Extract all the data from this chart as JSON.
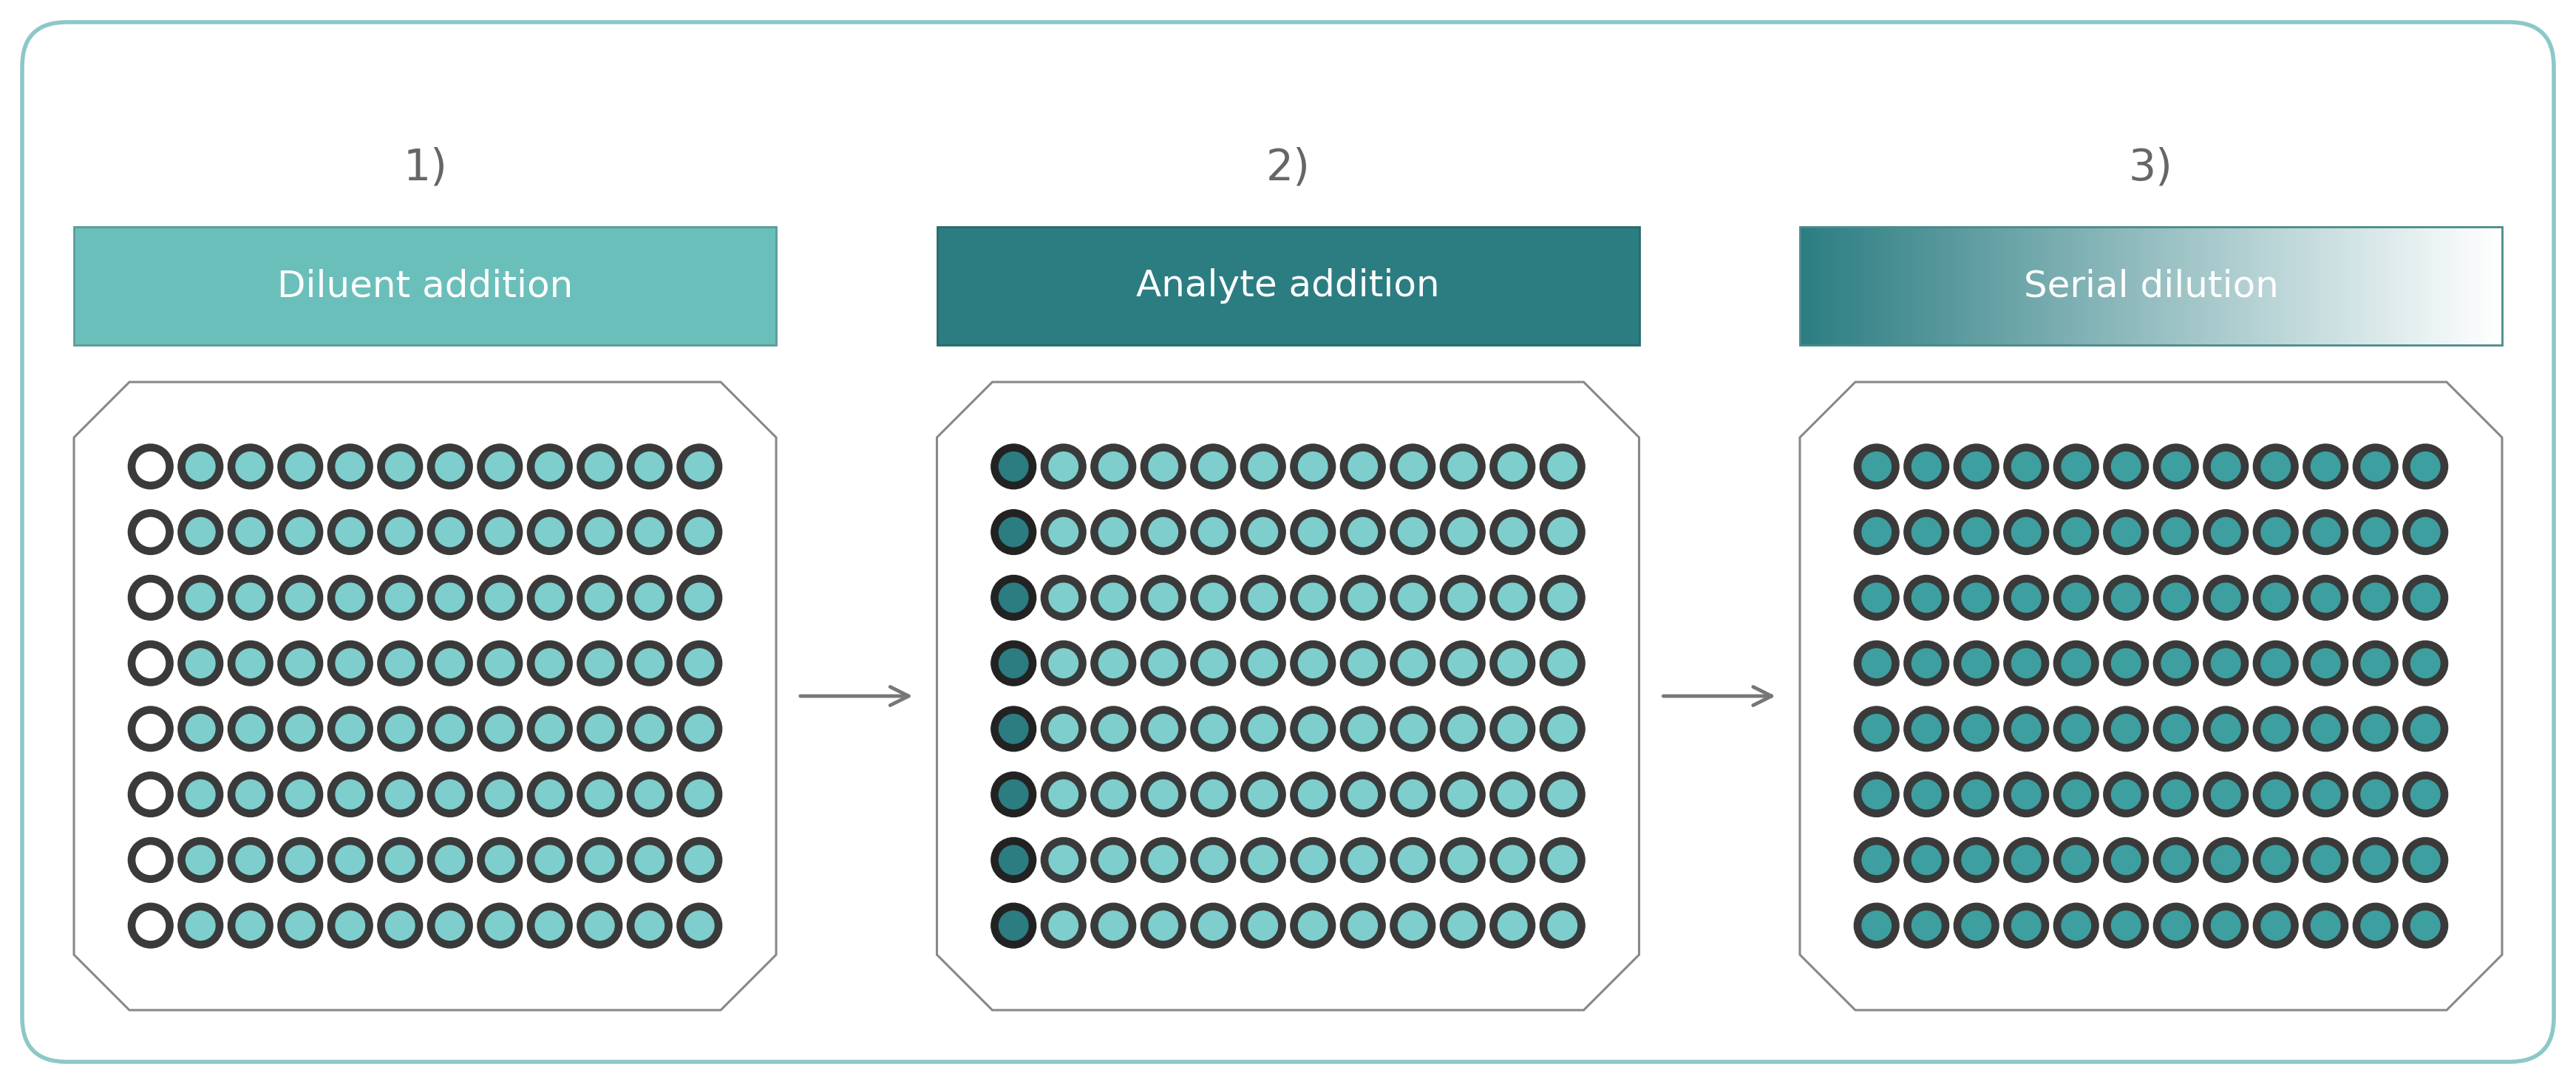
{
  "steps": [
    "1)",
    "2)",
    "3)"
  ],
  "step_labels": [
    "Diluent addition",
    "Analyte addition",
    "Serial dilution"
  ],
  "step_label_color1": "#6bbfbb",
  "step_label_color2": "#2b7d82",
  "bg_color": "#ffffff",
  "outer_border_color": "#8cc8c8",
  "plate_border_color": "#888888",
  "well_ring_color": "#444444",
  "well_ring_color_dark": "#333333",
  "well_teal_light": "#7ecece",
  "well_teal_dark": "#2b7d82",
  "well_white": "#ffffff",
  "arrow_color": "#777777",
  "step_number_color": "#666666",
  "label_text_color": "#ffffff"
}
